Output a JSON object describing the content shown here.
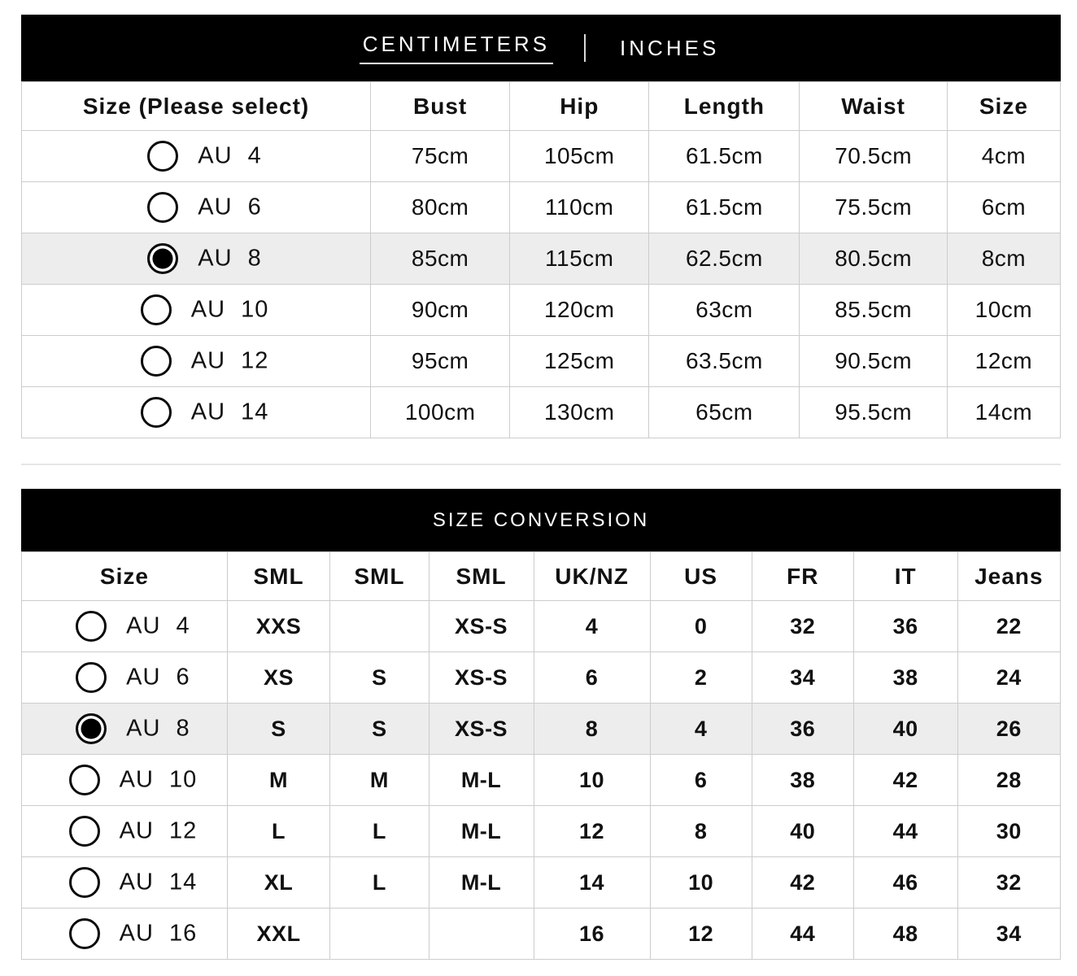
{
  "colors": {
    "header_bar_bg": "#000000",
    "header_bar_text": "#ffffff",
    "table_border": "#cccccc",
    "selected_row_bg": "#ededed",
    "text": "#111111"
  },
  "unit_tabs": {
    "centimeters": "CENTIMETERS",
    "inches": "INCHES",
    "active": "centimeters"
  },
  "size_table": {
    "columns": [
      "Size (Please select)",
      "Bust",
      "Hip",
      "Length",
      "Waist",
      "Size"
    ],
    "rows": [
      {
        "label": "AU 4",
        "selected": false,
        "values": [
          "75cm",
          "105cm",
          "61.5cm",
          "70.5cm",
          "4cm"
        ]
      },
      {
        "label": "AU 6",
        "selected": false,
        "values": [
          "80cm",
          "110cm",
          "61.5cm",
          "75.5cm",
          "6cm"
        ]
      },
      {
        "label": "AU 8",
        "selected": true,
        "values": [
          "85cm",
          "115cm",
          "62.5cm",
          "80.5cm",
          "8cm"
        ]
      },
      {
        "label": "AU 10",
        "selected": false,
        "values": [
          "90cm",
          "120cm",
          "63cm",
          "85.5cm",
          "10cm"
        ]
      },
      {
        "label": "AU 12",
        "selected": false,
        "values": [
          "95cm",
          "125cm",
          "63.5cm",
          "90.5cm",
          "12cm"
        ]
      },
      {
        "label": "AU 14",
        "selected": false,
        "values": [
          "100cm",
          "130cm",
          "65cm",
          "95.5cm",
          "14cm"
        ]
      }
    ]
  },
  "conversion_table": {
    "title": "SIZE CONVERSION",
    "columns": [
      "Size",
      "SML",
      "SML",
      "SML",
      "UK/NZ",
      "US",
      "FR",
      "IT",
      "Jeans"
    ],
    "rows": [
      {
        "label": "AU 4",
        "selected": false,
        "values": [
          "XXS",
          "",
          "XS-S",
          "4",
          "0",
          "32",
          "36",
          "22"
        ]
      },
      {
        "label": "AU 6",
        "selected": false,
        "values": [
          "XS",
          "S",
          "XS-S",
          "6",
          "2",
          "34",
          "38",
          "24"
        ]
      },
      {
        "label": "AU 8",
        "selected": true,
        "values": [
          "S",
          "S",
          "XS-S",
          "8",
          "4",
          "36",
          "40",
          "26"
        ]
      },
      {
        "label": "AU 10",
        "selected": false,
        "values": [
          "M",
          "M",
          "M-L",
          "10",
          "6",
          "38",
          "42",
          "28"
        ]
      },
      {
        "label": "AU 12",
        "selected": false,
        "values": [
          "L",
          "L",
          "M-L",
          "12",
          "8",
          "40",
          "44",
          "30"
        ]
      },
      {
        "label": "AU 14",
        "selected": false,
        "values": [
          "XL",
          "L",
          "M-L",
          "14",
          "10",
          "42",
          "46",
          "32"
        ]
      },
      {
        "label": "AU 16",
        "selected": false,
        "values": [
          "XXL",
          "",
          "",
          "16",
          "12",
          "44",
          "48",
          "34"
        ]
      }
    ]
  }
}
